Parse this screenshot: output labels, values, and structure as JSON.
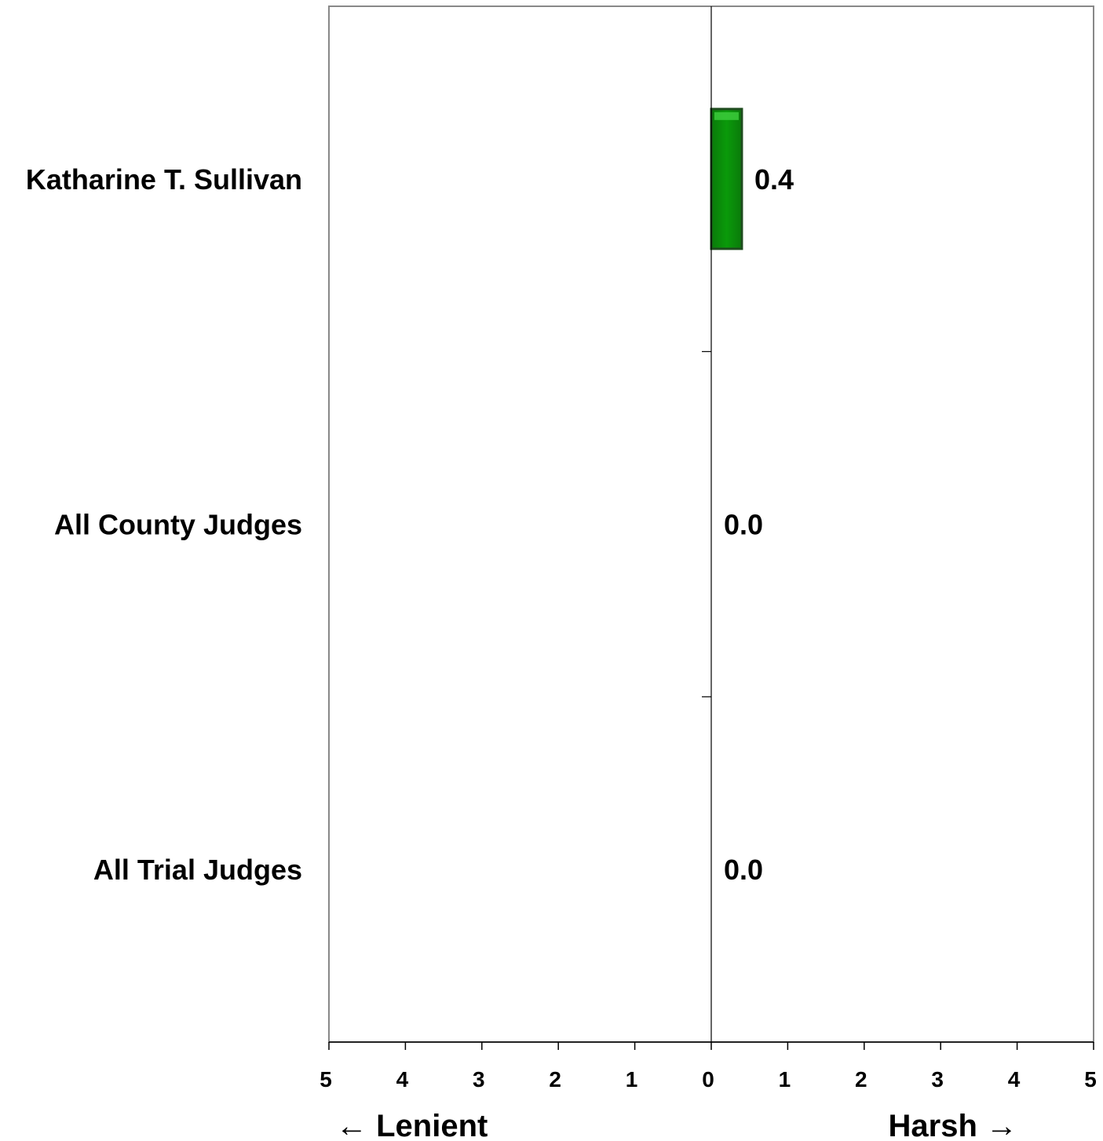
{
  "chart_data": {
    "type": "bar",
    "orientation": "horizontal",
    "categories": [
      "Katharine T. Sullivan",
      "All County Judges",
      "All Trial Judges"
    ],
    "values": [
      0.4,
      0.0,
      0.0
    ],
    "value_labels": [
      "0.4",
      "0.0",
      "0.0"
    ],
    "xlim": [
      -5,
      5
    ],
    "x_tick_values": [
      -5,
      -4,
      -3,
      -2,
      -1,
      0,
      1,
      2,
      3,
      4,
      5
    ],
    "x_tick_labels": [
      "5",
      "4",
      "3",
      "2",
      "1",
      "0",
      "1",
      "2",
      "3",
      "4",
      "5"
    ],
    "direction_labels": {
      "left": "← Lenient",
      "right": "Harsh →"
    },
    "grid": false,
    "colors": {
      "bar_fill": "#0a9a0a",
      "bar_highlight": "#3fcf3f",
      "bar_border": "#1f4d1f",
      "axis": "#000000",
      "frame": "#888888"
    }
  }
}
